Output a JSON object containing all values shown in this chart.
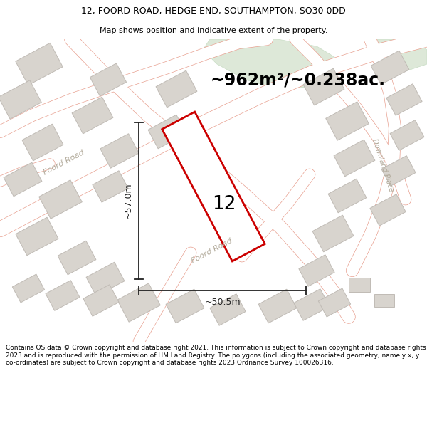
{
  "title_line1": "12, FOORD ROAD, HEDGE END, SOUTHAMPTON, SO30 0DD",
  "title_line2": "Map shows position and indicative extent of the property.",
  "area_label": "~962m²/~0.238ac.",
  "dim_height": "~57.0m",
  "dim_width": "~50.5m",
  "property_number": "12",
  "footer": "Contains OS data © Crown copyright and database right 2021. This information is subject to Crown copyright and database rights 2023 and is reproduced with the permission of HM Land Registry. The polygons (including the associated geometry, namely x, y co-ordinates) are subject to Crown copyright and database rights 2023 Ordnance Survey 100026316.",
  "map_bg": "#f5f3ef",
  "building_fill": "#d8d4ce",
  "building_stroke": "#c0bbb5",
  "road_stroke": "#e8a090",
  "property_stroke": "#cc0000",
  "property_fill": "#ffffff",
  "green_fill": "#dde8d8",
  "green_stroke": "#c8ddc4",
  "title_bg": "#ffffff",
  "label_color": "#b0a898",
  "dim_color": "#222222",
  "area_fontsize": 17,
  "title_fontsize": 9,
  "subtitle_fontsize": 8,
  "footer_fontsize": 6.5,
  "dim_fontsize": 9,
  "road_label_fontsize": 8,
  "prop_label_fontsize": 19
}
